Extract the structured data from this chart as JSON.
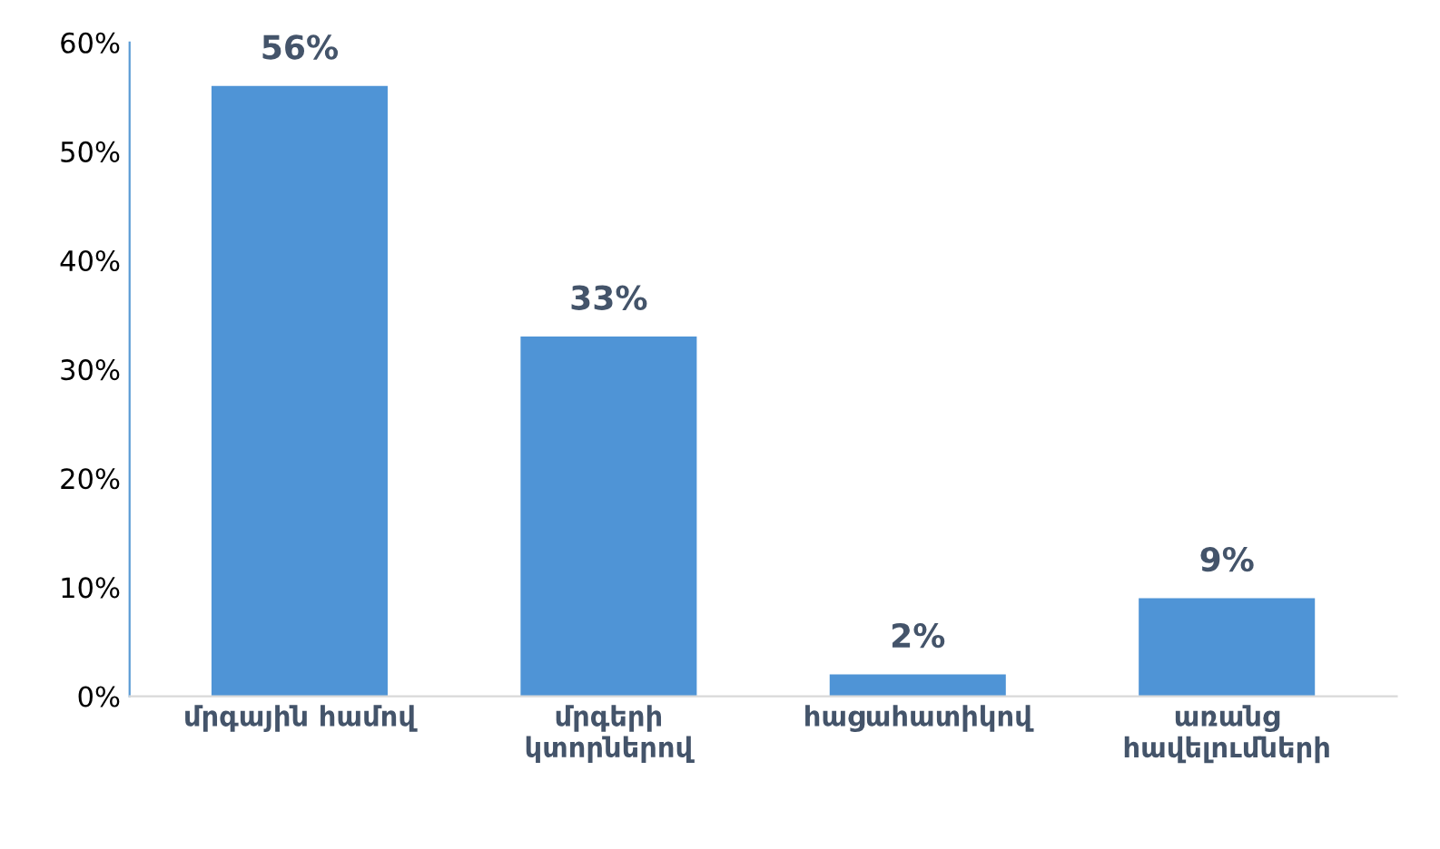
{
  "chart_data": {
    "type": "bar",
    "categories": [
      "մրգային համով",
      "մրգերի\nկտորներով",
      "հացահատիկով",
      "առանց\nհավելումների"
    ],
    "values": [
      56,
      33,
      2,
      9
    ],
    "color": "#4f94d6",
    "value_labels": [
      "56%",
      "33%",
      "2%",
      "9%"
    ],
    "ylim": [
      0,
      60
    ],
    "yticks": [
      {
        "value": 0,
        "label": "0%"
      },
      {
        "value": 10,
        "label": "10%"
      },
      {
        "value": 20,
        "label": "20%"
      },
      {
        "value": 30,
        "label": "30%"
      },
      {
        "value": 40,
        "label": "40%"
      },
      {
        "value": 50,
        "label": "50%"
      },
      {
        "value": 60,
        "label": "60%"
      }
    ],
    "grid": false,
    "legend": false
  }
}
